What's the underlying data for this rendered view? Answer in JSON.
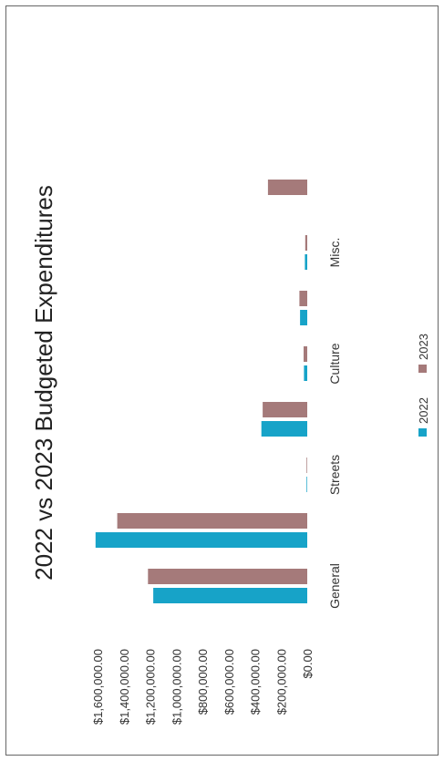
{
  "chart_data": {
    "type": "bar",
    "orientation": "horizontal",
    "title": "2022 vs 2023 Budgeted Expenditures",
    "categories": [
      "General",
      "",
      "Streets",
      "",
      "Culture",
      "",
      "Misc.",
      ""
    ],
    "series": [
      {
        "name": "2022",
        "color": "#17a3c8",
        "values": [
          1175000,
          1615000,
          5000,
          350000,
          25000,
          55000,
          18000,
          0
        ]
      },
      {
        "name": "2023",
        "color": "#a57a7a",
        "values": [
          1215000,
          1450000,
          5000,
          340000,
          28000,
          60000,
          15000,
          300000
        ]
      }
    ],
    "value_axis": {
      "min": 0,
      "max": 1600000,
      "step": 200000,
      "tick_labels": [
        "$0.00",
        "$200,000.00",
        "$400,000.00",
        "$600,000.00",
        "$800,000.00",
        "$1,000,000.00",
        "$1,200,000.00",
        "$1,400,000.00",
        "$1,600,000.00"
      ]
    },
    "grid": false,
    "legend": "bottom",
    "rotated": "90deg counter-clockwise"
  }
}
